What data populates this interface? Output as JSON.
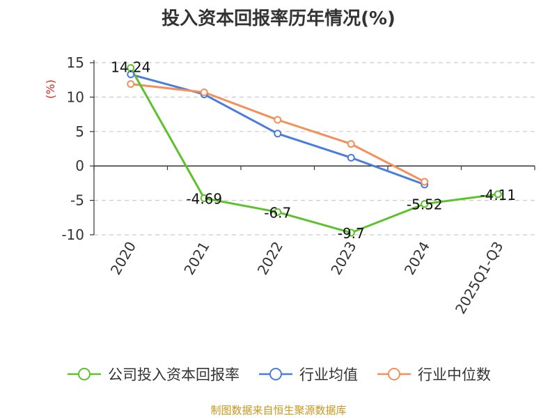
{
  "chart_data": {
    "type": "line",
    "title": "投入资本回报率历年情况(%)",
    "ylabel": "(%)",
    "xlabel": "",
    "categories": [
      "2020",
      "2021",
      "2022",
      "2023",
      "2024",
      "2025Q1-Q3"
    ],
    "ylim": [
      -10,
      15
    ],
    "yticks": [
      15,
      10,
      5,
      0,
      -5,
      -10
    ],
    "grid": true,
    "legend_position": "bottom",
    "series": [
      {
        "name": "公司投入资本回报率",
        "color": "#5cc22a",
        "values": [
          14.24,
          -4.69,
          -6.7,
          -9.7,
          -5.52,
          -4.11
        ],
        "labels": [
          "14.24",
          "-4.69",
          "-6.7",
          "-9.7",
          "-5.52",
          "-4.11"
        ]
      },
      {
        "name": "行业均值",
        "color": "#4a7ddb",
        "values": [
          13.3,
          10.4,
          4.7,
          1.2,
          -2.7,
          null
        ]
      },
      {
        "name": "行业中位数",
        "color": "#f58f5a",
        "values": [
          11.9,
          10.7,
          6.7,
          3.2,
          -2.3,
          null
        ]
      }
    ]
  },
  "footer": "制图数据来自恒生聚源数据库"
}
